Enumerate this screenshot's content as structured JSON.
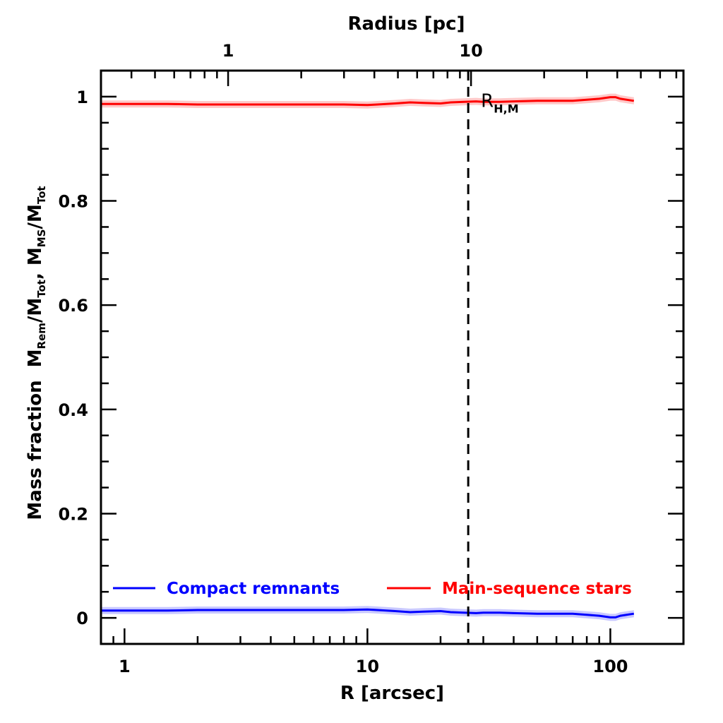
{
  "chart_data": {
    "type": "line",
    "xlabel": "R [arcsec]",
    "xlabel_top": "Radius [pc]",
    "ylabel": {
      "prefix": "Mass fraction",
      "ratio1_num": "M",
      "ratio1_num_sub": "Rem",
      "ratio1_den": "M",
      "ratio1_den_sub": "Tot",
      "sep": ",",
      "ratio2_num": "M",
      "ratio2_num_sub": "MS",
      "ratio2_den": "M",
      "ratio2_den_sub": "Tot"
    },
    "x_scale": "log",
    "xlim": [
      0.8,
      200
    ],
    "ylim": [
      -0.05,
      1.05
    ],
    "x_ticks": [
      1,
      10,
      100
    ],
    "x_tick_labels": [
      "1",
      "10",
      "100"
    ],
    "x_top_ticks_arcsec": [
      2.67,
      26.7
    ],
    "x_top_tick_labels": [
      "1",
      "10"
    ],
    "y_ticks": [
      0,
      0.2,
      0.4,
      0.6,
      0.8,
      1
    ],
    "y_tick_labels": [
      "0",
      "0.2",
      "0.4",
      "0.6",
      "0.8",
      "1"
    ],
    "grid": false,
    "legend_position": "bottom",
    "series": [
      {
        "name": "Compact remnants",
        "color": "#0000ff",
        "band_color": "#c8c8ff",
        "x": [
          0.8,
          1,
          1.5,
          2,
          3,
          4,
          5,
          6,
          8,
          10,
          11,
          13,
          15,
          17,
          20,
          22,
          25,
          28,
          30,
          35,
          40,
          50,
          60,
          70,
          80,
          90,
          100,
          105,
          110,
          125
        ],
        "y": [
          0.014,
          0.014,
          0.014,
          0.015,
          0.015,
          0.015,
          0.015,
          0.015,
          0.015,
          0.016,
          0.015,
          0.013,
          0.011,
          0.012,
          0.013,
          0.011,
          0.01,
          0.009,
          0.01,
          0.01,
          0.009,
          0.008,
          0.008,
          0.008,
          0.006,
          0.004,
          0.001,
          0.001,
          0.004,
          0.008
        ]
      },
      {
        "name": "Main-sequence stars",
        "color": "#ff0000",
        "band_color": "#ffc8c8",
        "x": [
          0.8,
          1,
          1.5,
          2,
          3,
          4,
          5,
          6,
          8,
          10,
          11,
          13,
          15,
          17,
          20,
          22,
          25,
          28,
          30,
          35,
          40,
          50,
          60,
          70,
          80,
          90,
          100,
          105,
          110,
          125
        ],
        "y": [
          0.986,
          0.986,
          0.986,
          0.985,
          0.985,
          0.985,
          0.985,
          0.985,
          0.985,
          0.984,
          0.985,
          0.987,
          0.989,
          0.988,
          0.987,
          0.989,
          0.99,
          0.991,
          0.99,
          0.99,
          0.991,
          0.992,
          0.992,
          0.992,
          0.994,
          0.996,
          0.999,
          0.999,
          0.996,
          0.992
        ]
      }
    ],
    "annotations": [
      {
        "type": "vline",
        "x": 26,
        "style": "dashed",
        "label": "R",
        "label_sub": "H,M"
      }
    ]
  }
}
